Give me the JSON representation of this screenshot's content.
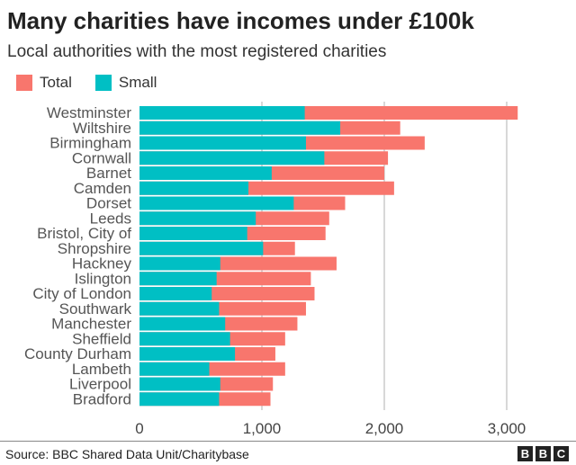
{
  "chart_data": {
    "type": "bar",
    "orientation": "horizontal",
    "stacking": "overlay",
    "title": "Many charities have incomes under £100k",
    "subtitle": "Local authorities with the most registered charities",
    "categories": [
      "Westminster",
      "Wiltshire",
      "Birmingham",
      "Cornwall",
      "Barnet",
      "Camden",
      "Dorset",
      "Leeds",
      "Bristol, City of",
      "Shropshire",
      "Hackney",
      "Islington",
      "City of London",
      "Southwark",
      "Manchester",
      "Sheffield",
      "County Durham",
      "Lambeth",
      "Liverpool",
      "Bradford"
    ],
    "series": [
      {
        "name": "Total",
        "color": "#f8766d",
        "values": [
          3090,
          2130,
          2330,
          2030,
          2000,
          2080,
          1680,
          1550,
          1520,
          1270,
          1610,
          1400,
          1430,
          1360,
          1290,
          1190,
          1110,
          1190,
          1090,
          1070
        ]
      },
      {
        "name": "Small",
        "color": "#00bfc4",
        "values": [
          1350,
          1640,
          1360,
          1510,
          1080,
          890,
          1260,
          950,
          880,
          1010,
          660,
          630,
          590,
          650,
          700,
          740,
          780,
          570,
          660,
          650
        ]
      }
    ],
    "xlim": [
      0,
      3200
    ],
    "xticks": [
      0,
      1000,
      2000,
      3000
    ],
    "xtick_labels": [
      "0",
      "1,000",
      "2,000",
      "3,000"
    ],
    "grid": "vertical",
    "legend_position": "top-left"
  },
  "footer": {
    "source": "Source: BBC Shared Data Unit/Charitybase",
    "logo": [
      "B",
      "B",
      "C"
    ]
  }
}
